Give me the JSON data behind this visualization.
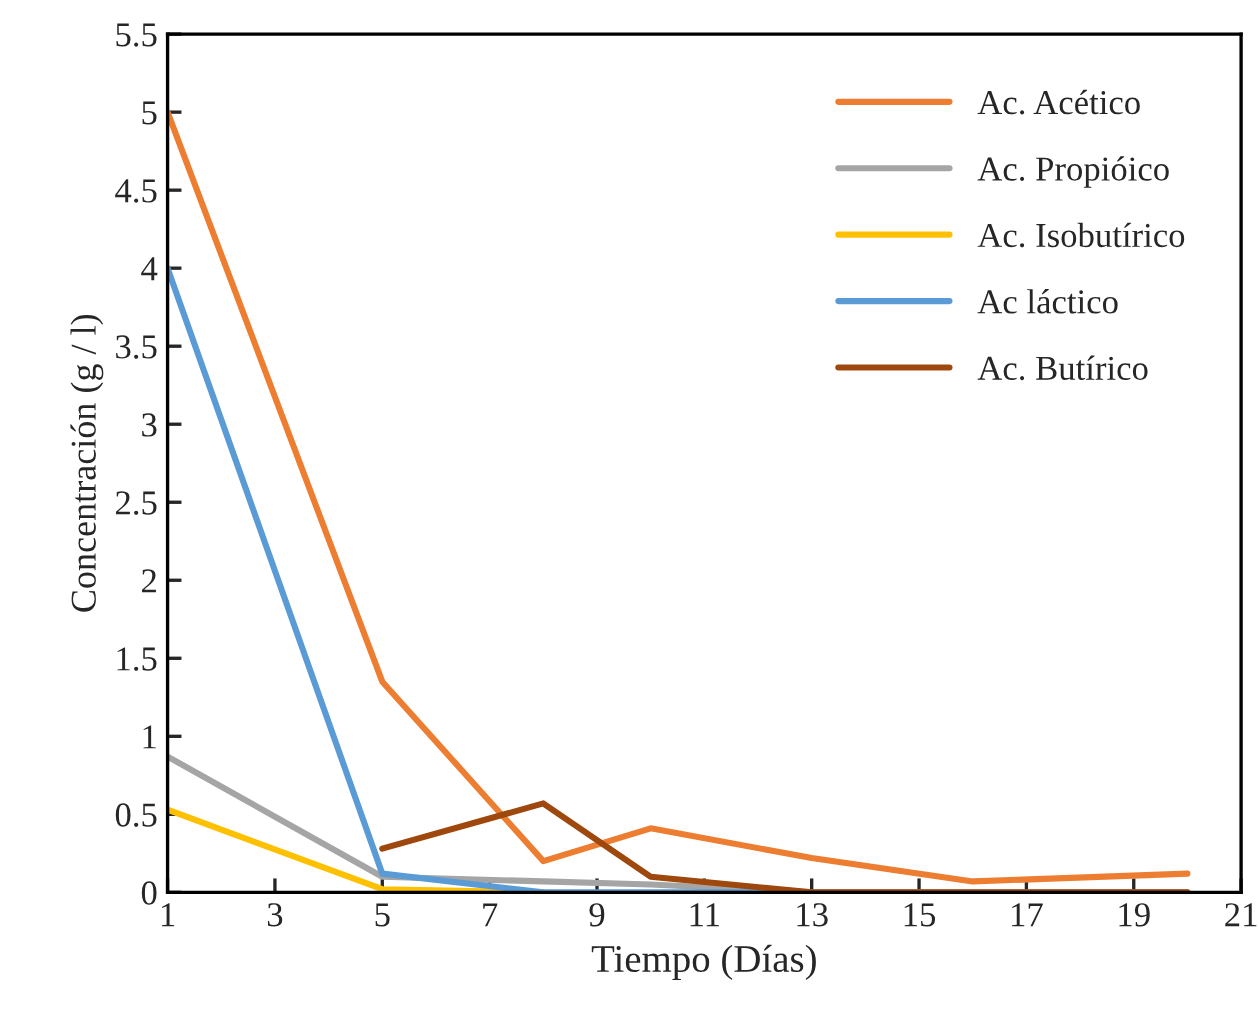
{
  "chart_data": {
    "type": "line",
    "xlabel": "Tiempo (Días)",
    "ylabel": "Concentración (g / l)",
    "x": [
      1,
      5,
      8,
      10,
      13,
      16,
      20
    ],
    "series": [
      {
        "name": "Ac. Acético",
        "color": "#ed7d31",
        "values": [
          5.0,
          1.35,
          0.2,
          0.41,
          0.22,
          0.07,
          0.12
        ]
      },
      {
        "name": "Ac. Propióico",
        "color": "#a5a5a5",
        "values": [
          0.87,
          0.1,
          0.07,
          0.05,
          0,
          0,
          0
        ]
      },
      {
        "name": "Ac. Isobutírico",
        "color": "#ffc000",
        "values": [
          0.53,
          0.02,
          0,
          null,
          null,
          null,
          null
        ]
      },
      {
        "name": "Ac láctico",
        "color": "#5b9bd5",
        "values": [
          4.0,
          0.12,
          0,
          0,
          0,
          null,
          null
        ]
      },
      {
        "name": "Ac. Butírico",
        "color": "#9e480e",
        "values": [
          null,
          0.28,
          0.57,
          0.1,
          0,
          0,
          0
        ]
      }
    ],
    "xlim": [
      1,
      21
    ],
    "xticks": [
      1,
      3,
      5,
      7,
      9,
      11,
      13,
      15,
      17,
      19,
      21
    ],
    "ylim": [
      0,
      5.5
    ],
    "yticks": [
      0,
      0.5,
      1,
      1.5,
      2,
      2.5,
      3,
      3.5,
      4,
      4.5,
      5,
      5.5
    ],
    "grid": false,
    "legend": "top right",
    "marker": "none",
    "line_style": "solid"
  }
}
